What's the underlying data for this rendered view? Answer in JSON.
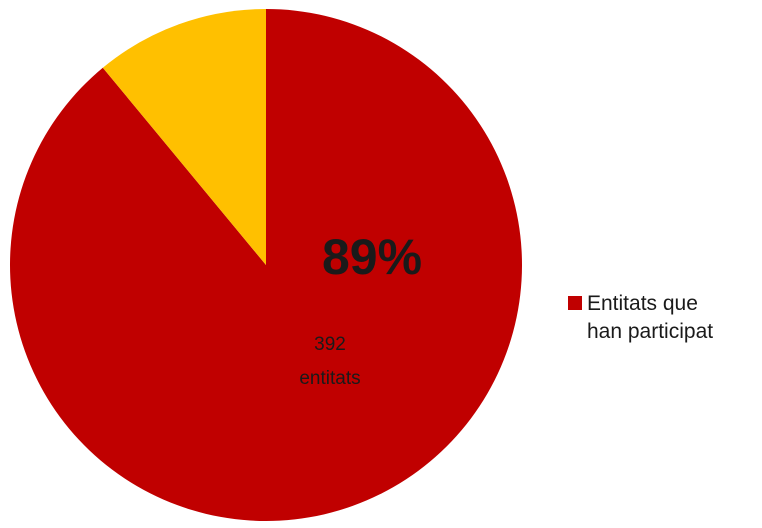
{
  "chart_data": {
    "type": "pie",
    "slices": [
      {
        "label": "Entitats que han participat",
        "percent": 89,
        "percent_label": "89%",
        "count_label": "392 entitats",
        "count_line1": "392",
        "count_line2": "entitats",
        "color": "#c00000"
      },
      {
        "label": "",
        "percent": 11,
        "color": "#ffc000"
      }
    ],
    "legend": {
      "position": "right",
      "entries": [
        {
          "label_line1": "Entitats que",
          "label_line2": "han participat",
          "color": "#c00000"
        }
      ]
    }
  }
}
